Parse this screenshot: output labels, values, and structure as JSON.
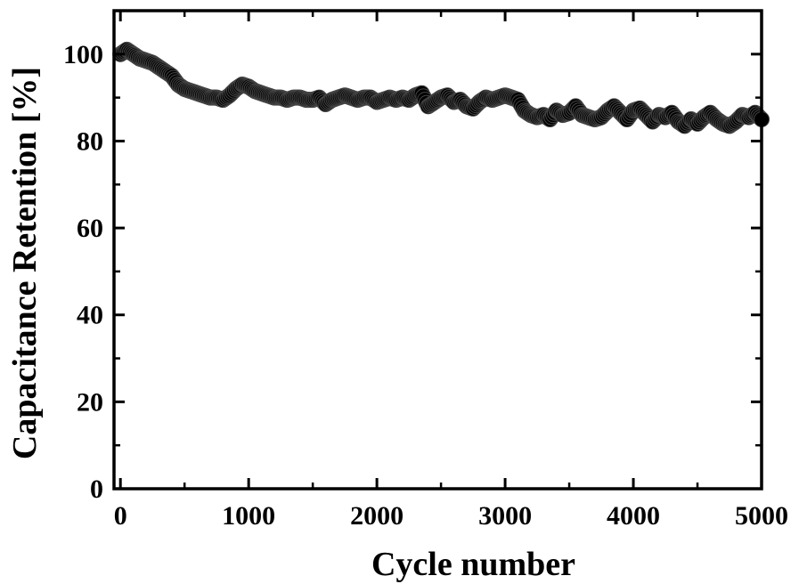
{
  "chart_data": {
    "type": "scatter",
    "title": "",
    "xlabel": "Cycle number",
    "ylabel": "Capacitance Retention [%]",
    "xlim": [
      -50,
      5000
    ],
    "ylim": [
      0,
      110
    ],
    "xticks": [
      0,
      1000,
      2000,
      3000,
      4000,
      5000
    ],
    "yticks": [
      0,
      20,
      40,
      60,
      80,
      100
    ],
    "grid": false,
    "legend": "none",
    "marker_color": "#000000",
    "series": [
      {
        "x": [
          0,
          50,
          100,
          150,
          200,
          250,
          300,
          350,
          400,
          450,
          500,
          550,
          600,
          650,
          700,
          750,
          800,
          850,
          900,
          950,
          1000,
          1050,
          1100,
          1150,
          1200,
          1250,
          1300,
          1350,
          1400,
          1450,
          1500,
          1550,
          1600,
          1650,
          1700,
          1750,
          1800,
          1850,
          1900,
          1950,
          2000,
          2050,
          2100,
          2150,
          2200,
          2250,
          2300,
          2350,
          2400,
          2450,
          2500,
          2550,
          2600,
          2650,
          2700,
          2750,
          2800,
          2850,
          2900,
          2950,
          3000,
          3050,
          3100,
          3150,
          3200,
          3250,
          3300,
          3350,
          3400,
          3450,
          3500,
          3550,
          3600,
          3650,
          3700,
          3750,
          3800,
          3850,
          3900,
          3950,
          4000,
          4050,
          4100,
          4150,
          4200,
          4250,
          4300,
          4350,
          4400,
          4450,
          4500,
          4550,
          4600,
          4650,
          4700,
          4750,
          4800,
          4850,
          4900,
          4950,
          5000
        ],
        "y": [
          100,
          101,
          100,
          99,
          98.5,
          98,
          97,
          96,
          95,
          93,
          92,
          91.5,
          91,
          90.5,
          90,
          90,
          89.5,
          90.5,
          92,
          93,
          92.5,
          91.5,
          91,
          90.5,
          90,
          90,
          89.5,
          90,
          90,
          89.5,
          89.5,
          90,
          88.5,
          89.5,
          90,
          90.5,
          90,
          89.5,
          90,
          90,
          89,
          89.5,
          90,
          89.5,
          90,
          89.5,
          90.5,
          91,
          88,
          89,
          90,
          90.5,
          89,
          89.5,
          88,
          87.5,
          89,
          90,
          89.5,
          90,
          90.5,
          90,
          89.5,
          87,
          86,
          85.5,
          86,
          85,
          87,
          86,
          86.5,
          88,
          86,
          85.5,
          85,
          85.5,
          87,
          88,
          86.5,
          85,
          87,
          87.5,
          86,
          84.5,
          86,
          85.5,
          86.5,
          84.5,
          83.5,
          85,
          84,
          85.5,
          86.5,
          85,
          84,
          83.5,
          84.5,
          86,
          85.5,
          86.5,
          85
        ]
      }
    ]
  }
}
